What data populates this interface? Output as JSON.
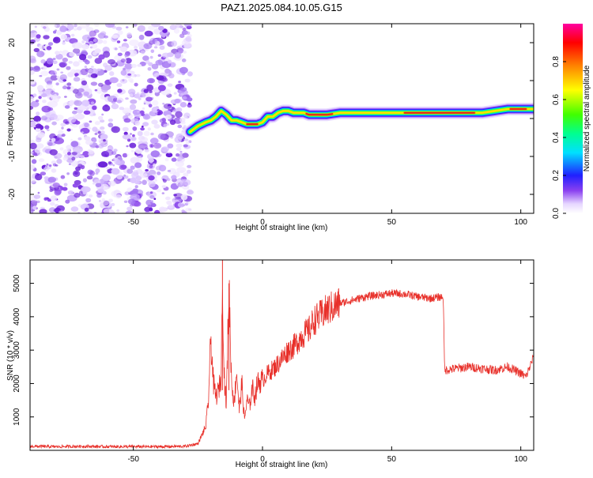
{
  "page": {
    "title": "PAZ1.2025.084.10.05.G15"
  },
  "colors": {
    "snr_line": "#e8302a",
    "axis": "#000000",
    "noise_purple": "#7a2fe0",
    "ridge_core": "#e02020"
  },
  "chart_data": [
    {
      "type": "heatmap",
      "title": "PAZ1.2025.084.10.05.G15",
      "xlabel": "Height of straight line (km)",
      "ylabel": "Frequency (Hz)",
      "xlim": [
        -90,
        105
      ],
      "ylim": [
        -25,
        25
      ],
      "x_ticks": [
        -50,
        0,
        50,
        100
      ],
      "y_ticks": [
        -20,
        -10,
        0,
        10,
        20
      ],
      "x_tick_labels": [
        "-50",
        "0",
        "50",
        "100"
      ],
      "y_tick_labels": [
        "-20",
        "-10",
        "0",
        "10",
        "20"
      ],
      "noise_region_x": [
        -90,
        -28
      ],
      "ridge": {
        "x": [
          -28,
          -25,
          -22,
          -20,
          -18,
          -16,
          -14,
          -12,
          -10,
          -8,
          -6,
          -4,
          -2,
          0,
          2,
          4,
          6,
          8,
          10,
          12,
          14,
          16,
          18,
          20,
          25,
          30,
          40,
          50,
          60,
          70,
          80,
          85,
          90,
          95,
          100,
          105
        ],
        "frequency": [
          -3.5,
          -2.0,
          -1.0,
          -0.5,
          0.5,
          2.0,
          1.0,
          -0.5,
          -0.5,
          -1.0,
          -1.5,
          -1.5,
          -1.5,
          -1.0,
          0.5,
          0.5,
          1.5,
          2.0,
          2.0,
          1.5,
          1.5,
          1.5,
          1.0,
          1.0,
          1.0,
          1.5,
          1.5,
          1.5,
          1.5,
          1.5,
          1.5,
          1.5,
          2.0,
          2.5,
          2.5,
          2.5
        ]
      },
      "colorbar": {
        "label": "Normalized spectral amplitude",
        "range": [
          0,
          1
        ],
        "ticks": [
          0.0,
          0.2,
          0.4,
          0.6,
          0.8
        ],
        "tick_labels": [
          "0.0",
          "0.2",
          "0.4",
          "0.6",
          "0.8"
        ],
        "colors": [
          "#ffffff",
          "#e0d0ff",
          "#8a40f0",
          "#2020ff",
          "#00e0ff",
          "#00ff80",
          "#40ff00",
          "#ffff00",
          "#ff8000",
          "#ff0000",
          "#ff00a0"
        ]
      }
    },
    {
      "type": "line",
      "xlabel": "Height of straight line (km)",
      "ylabel": "SNR (10 * v/v)",
      "xlim": [
        -90,
        105
      ],
      "ylim": [
        0,
        5700
      ],
      "x_ticks": [
        -50,
        0,
        50,
        100
      ],
      "y_ticks": [
        1000,
        2000,
        3000,
        4000,
        5000
      ],
      "x_tick_labels": [
        "-50",
        "0",
        "50",
        "100"
      ],
      "y_tick_labels": [
        "1000",
        "2000",
        "3000",
        "4000",
        "5000"
      ],
      "series": [
        {
          "color": "#e8302a",
          "x": [
            -90,
            -80,
            -70,
            -60,
            -50,
            -40,
            -30,
            -25,
            -22,
            -21,
            -20,
            -19,
            -18,
            -17,
            -16,
            -15.5,
            -15,
            -14.5,
            -14,
            -13,
            -12,
            -11,
            -10,
            -9,
            -8,
            -7,
            -6,
            -5,
            -4,
            -3,
            -2,
            0,
            2,
            5,
            8,
            10,
            12,
            15,
            18,
            20,
            22,
            25,
            30,
            35,
            40,
            45,
            50,
            55,
            60,
            65,
            70,
            70.5,
            75,
            80,
            85,
            90,
            95,
            100,
            102,
            105
          ],
          "y": [
            120,
            110,
            120,
            110,
            110,
            110,
            120,
            200,
            700,
            1400,
            3400,
            2000,
            1600,
            1800,
            2200,
            5700,
            2500,
            1900,
            1300,
            5000,
            2100,
            1400,
            2400,
            1200,
            2000,
            900,
            1500,
            1300,
            1900,
            1600,
            2000,
            2100,
            2300,
            2500,
            2800,
            3000,
            3100,
            3400,
            3600,
            3900,
            4000,
            4200,
            4400,
            4500,
            4600,
            4650,
            4700,
            4680,
            4600,
            4550,
            4600,
            2400,
            2450,
            2500,
            2450,
            2400,
            2500,
            2300,
            2200,
            2800
          ]
        }
      ]
    }
  ]
}
